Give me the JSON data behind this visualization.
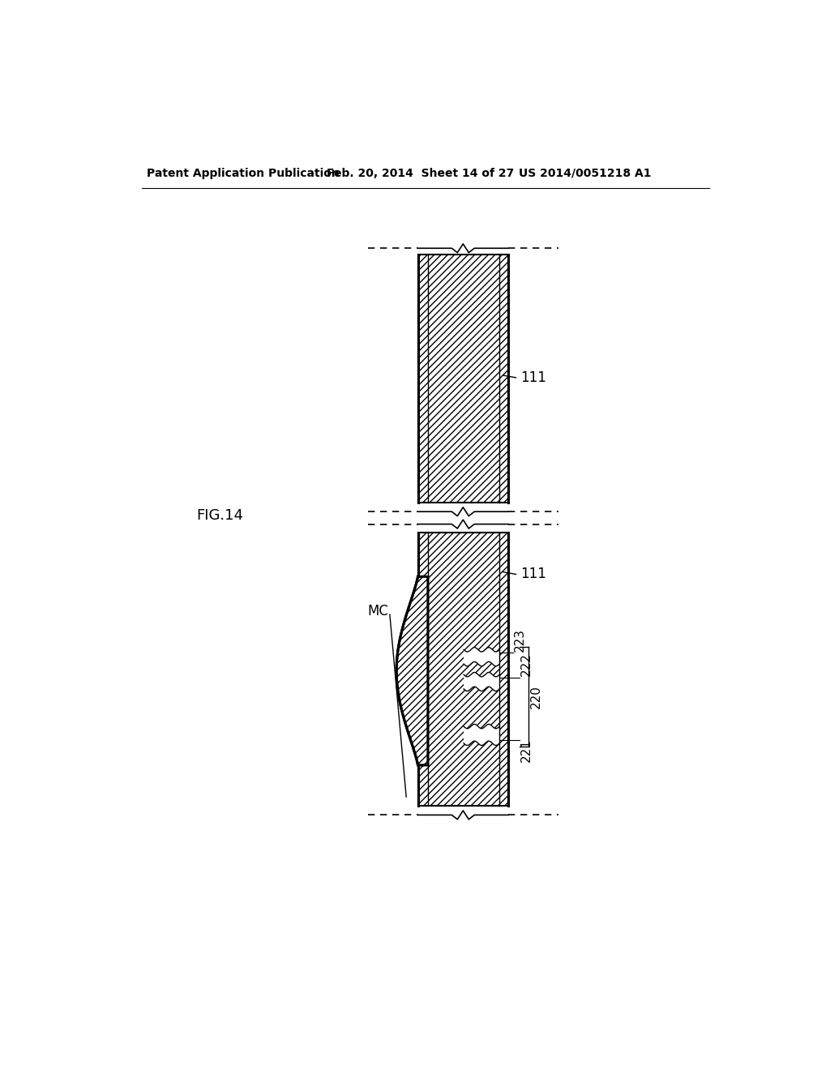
{
  "bg_color": "#ffffff",
  "line_color": "#000000",
  "title_left": "Patent Application Publication",
  "title_mid": "Feb. 20, 2014  Sheet 14 of 27",
  "title_right": "US 2014/0051218 A1",
  "fig_label": "FIG.14",
  "label_111_top": "111",
  "label_111_bot": "111",
  "label_MC": "MC",
  "label_220": "220",
  "label_221": "221",
  "label_222": "222",
  "label_223": "223",
  "lw_border": 2.2,
  "lw_thin": 1.0,
  "lw_break": 1.2
}
